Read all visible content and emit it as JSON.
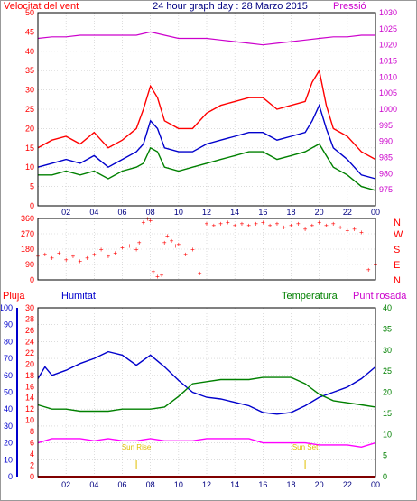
{
  "chart_data": [
    {
      "type": "line",
      "title": "24 hour graph day : 28 Marzo 2015",
      "left_label": "Velocitat del vent",
      "right_label": "Pressió",
      "x_ticks": [
        "02",
        "04",
        "06",
        "08",
        "10",
        "12",
        "14",
        "16",
        "18",
        "20",
        "22",
        "00"
      ],
      "x_range_hours": [
        0,
        24
      ],
      "y_left": {
        "range": [
          0,
          50
        ],
        "ticks": [
          "0",
          "5",
          "10",
          "15",
          "20",
          "25",
          "30",
          "35",
          "40",
          "45",
          "50"
        ]
      },
      "y_right": {
        "range": [
          970,
          1030
        ],
        "ticks": [
          "975",
          "980",
          "985",
          "990",
          "995",
          "1000",
          "1005",
          "1010",
          "1015",
          "1020",
          "1025",
          "1030"
        ]
      },
      "series": [
        {
          "color": "#ff0000",
          "axis": "left",
          "x": [
            0,
            1,
            2,
            3,
            4,
            5,
            6,
            7,
            7.5,
            8,
            8.5,
            9,
            10,
            11,
            12,
            13,
            14,
            15,
            16,
            17,
            18,
            19,
            19.5,
            20,
            20.5,
            21,
            22,
            23,
            24
          ],
          "y": [
            15,
            17,
            18,
            16,
            19,
            15,
            17,
            20,
            25,
            31,
            28,
            22,
            20,
            20,
            24,
            26,
            27,
            28,
            28,
            25,
            26,
            27,
            32,
            35,
            26,
            20,
            18,
            14,
            12
          ]
        },
        {
          "color": "#0000cc",
          "axis": "left",
          "x": [
            0,
            1,
            2,
            3,
            4,
            5,
            6,
            7,
            7.5,
            8,
            8.5,
            9,
            10,
            11,
            12,
            13,
            14,
            15,
            16,
            17,
            18,
            19,
            19.5,
            20,
            20.5,
            21,
            22,
            23,
            24
          ],
          "y": [
            10,
            11,
            12,
            11,
            13,
            10,
            12,
            14,
            16,
            22,
            20,
            15,
            14,
            14,
            16,
            17,
            18,
            19,
            19,
            17,
            18,
            19,
            22,
            26,
            20,
            15,
            12,
            8,
            7
          ]
        },
        {
          "color": "#008000",
          "axis": "left",
          "x": [
            0,
            1,
            2,
            3,
            4,
            5,
            6,
            7,
            7.5,
            8,
            8.5,
            9,
            10,
            11,
            12,
            13,
            14,
            15,
            16,
            17,
            18,
            19,
            19.5,
            20,
            20.5,
            21,
            22,
            23,
            24
          ],
          "y": [
            8,
            8,
            9,
            8,
            9,
            7,
            9,
            10,
            11,
            15,
            14,
            10,
            9,
            10,
            11,
            12,
            13,
            14,
            14,
            12,
            13,
            14,
            15,
            16,
            13,
            10,
            8,
            5,
            4
          ]
        },
        {
          "color": "#cc00cc",
          "axis": "right",
          "x": [
            0,
            1,
            2,
            3,
            4,
            5,
            6,
            7,
            8,
            9,
            10,
            11,
            12,
            13,
            14,
            15,
            16,
            17,
            18,
            19,
            20,
            21,
            22,
            23,
            24
          ],
          "y": [
            1022,
            1022.5,
            1022.5,
            1023,
            1023,
            1023,
            1023,
            1023,
            1024,
            1023,
            1022,
            1022,
            1022,
            1021.5,
            1021,
            1020.5,
            1020,
            1020.5,
            1021,
            1021.5,
            1022,
            1022.5,
            1022.5,
            1023,
            1023
          ]
        }
      ]
    },
    {
      "type": "scatter",
      "title": "",
      "right_label": "N W S E N",
      "compass": [
        "N",
        "W",
        "S",
        "E",
        "N"
      ],
      "x_range_hours": [
        0,
        24
      ],
      "y_range": [
        0,
        360
      ],
      "y_ticks": [
        "0",
        "90",
        "180",
        "270",
        "360"
      ],
      "series": [
        {
          "color": "#ff0000",
          "x": [
            0,
            0.5,
            1,
            1.5,
            2,
            2.5,
            3,
            3.5,
            4,
            4.5,
            5,
            5.5,
            6,
            6.5,
            7,
            7.2,
            7.5,
            7.8,
            8,
            8.2,
            8.5,
            8.8,
            9,
            9.2,
            9.5,
            9.8,
            10,
            10.5,
            11,
            11.5,
            12,
            12.5,
            13,
            13.5,
            14,
            14.5,
            15,
            15.5,
            16,
            16.5,
            17,
            17.5,
            18,
            18.5,
            19,
            19.5,
            20,
            20.5,
            21,
            21.5,
            22,
            22.5,
            23,
            23.5,
            24
          ],
          "y": [
            140,
            150,
            130,
            160,
            120,
            140,
            110,
            130,
            150,
            180,
            140,
            160,
            190,
            200,
            180,
            220,
            340,
            360,
            350,
            50,
            20,
            30,
            220,
            260,
            230,
            200,
            210,
            150,
            180,
            40,
            330,
            320,
            330,
            340,
            320,
            330,
            320,
            330,
            340,
            320,
            330,
            310,
            320,
            330,
            300,
            320,
            340,
            320,
            330,
            310,
            290,
            300,
            280,
            60,
            90
          ]
        }
      ]
    },
    {
      "type": "line",
      "title": "",
      "top_labels": [
        "Pluja",
        "Humitat",
        "Temperatura",
        "Punt rosada"
      ],
      "annotations": [
        "Sun Rise",
        "Sun Set"
      ],
      "annotation_hours": [
        7,
        19
      ],
      "x_ticks": [
        "02",
        "04",
        "06",
        "08",
        "10",
        "12",
        "14",
        "16",
        "18",
        "20",
        "22",
        "00"
      ],
      "x_range_hours": [
        0,
        24
      ],
      "y_humidity": {
        "range": [
          0,
          100
        ],
        "ticks": [
          "0",
          "10",
          "20",
          "30",
          "40",
          "50",
          "60",
          "70",
          "80",
          "90",
          "100"
        ]
      },
      "y_rain": {
        "range": [
          0,
          30
        ],
        "ticks": [
          "0",
          "2",
          "4",
          "6",
          "8",
          "10",
          "12",
          "14",
          "16",
          "18",
          "20",
          "22",
          "24",
          "26",
          "28",
          "30"
        ]
      },
      "y_temp": {
        "range": [
          0,
          40
        ],
        "ticks": [
          "0",
          "5",
          "10",
          "15",
          "20",
          "25",
          "30",
          "35",
          "40"
        ]
      },
      "series": [
        {
          "name": "Humitat",
          "color": "#0000cc",
          "axis": "humidity",
          "x": [
            0,
            0.5,
            1,
            2,
            3,
            4,
            5,
            6,
            7,
            8,
            9,
            10,
            11,
            12,
            13,
            14,
            15,
            16,
            17,
            18,
            19,
            20,
            21,
            22,
            23,
            24
          ],
          "y": [
            58,
            65,
            60,
            63,
            67,
            70,
            74,
            72,
            66,
            72,
            65,
            57,
            50,
            47,
            46,
            44,
            42,
            38,
            37,
            38,
            42,
            47,
            50,
            53,
            58,
            65
          ]
        },
        {
          "name": "Temperatura",
          "color": "#008000",
          "axis": "temp",
          "x": [
            0,
            1,
            2,
            3,
            4,
            5,
            6,
            7,
            8,
            9,
            10,
            11,
            12,
            13,
            14,
            15,
            16,
            17,
            18,
            19,
            20,
            21,
            22,
            23,
            24
          ],
          "y": [
            17,
            16,
            16,
            15.5,
            15.5,
            15.5,
            16,
            16,
            16,
            16.5,
            19,
            22,
            22.5,
            23,
            23,
            23,
            23.5,
            23.5,
            23.5,
            22,
            19.5,
            18,
            17.5,
            17,
            16.5
          ]
        },
        {
          "name": "Punt rosada",
          "color": "#ff00ff",
          "axis": "temp",
          "x": [
            0,
            1,
            2,
            3,
            4,
            5,
            6,
            7,
            8,
            9,
            10,
            11,
            12,
            13,
            14,
            15,
            16,
            17,
            18,
            19,
            20,
            21,
            22,
            23,
            24
          ],
          "y": [
            8,
            9,
            9,
            9,
            8.5,
            9,
            8.5,
            8.5,
            9,
            8.5,
            8.5,
            8.5,
            9,
            9,
            9,
            9,
            8,
            8,
            8,
            8,
            7.5,
            7.5,
            7.5,
            7,
            8
          ]
        },
        {
          "name": "Pluja",
          "color": "#ff0000",
          "axis": "rain",
          "x": [
            0,
            24
          ],
          "y": [
            0,
            0
          ]
        }
      ]
    }
  ]
}
